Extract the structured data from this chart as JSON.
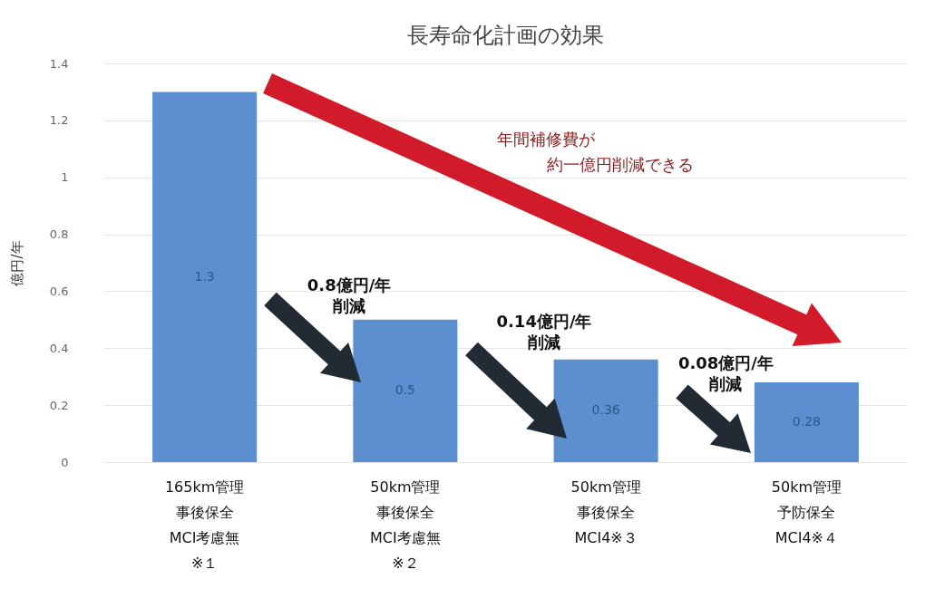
{
  "chart_data": {
    "type": "bar",
    "title": "長寿命化計画の効果",
    "ylabel": "億円/年",
    "categories": [
      "165km管理事後保全MCI考慮無※１",
      "50km管理事後保全MCI考慮無※２",
      "50km管理事後保全MCI4※３",
      "50km管理予防保全MCI4※４"
    ],
    "values": [
      1.3,
      0.5,
      0.36,
      0.28
    ],
    "color": "#5b8fd0",
    "data_labels": true,
    "ylim": [
      0,
      1.4
    ],
    "yticks": [
      0,
      0.2,
      0.4,
      0.6,
      0.8,
      1,
      1.2,
      1.4
    ],
    "grid": "y",
    "annotations": [
      "年間補修費が",
      "約一億円削減できる",
      "0.8億円/年削減",
      "0.14億円/年削減",
      {
        "text": "0.08億円/年削減",
        "x": "50km管理予防保全MCI4※４",
        "y": 0.28
      }
    ]
  }
}
